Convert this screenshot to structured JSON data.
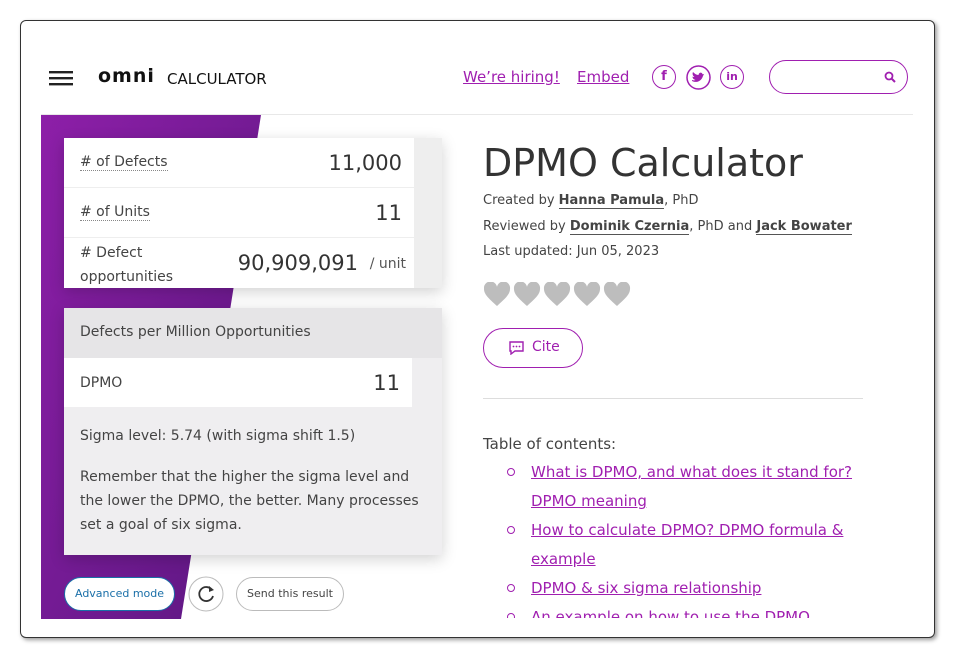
{
  "header": {
    "logo_bold": "omni",
    "logo_light": "CALCULATOR",
    "links": [
      "We’re hiring!",
      "Embed"
    ],
    "social": [
      "f",
      "in"
    ]
  },
  "calculator": {
    "inputs": [
      {
        "label": "# of Defects",
        "value": "11,000"
      },
      {
        "label": "# of Units",
        "value": "11"
      },
      {
        "label": "# Defect opportunities",
        "value": "90,909,091",
        "unit": "/ unit"
      }
    ],
    "result_title": "Defects per Million Opportunities",
    "result": {
      "label": "DPMO",
      "value": "11"
    },
    "sigma": "Sigma level: 5.74 (with sigma shift 1.5)",
    "note": "Remember that the higher the sigma level and the lower the DPMO, the better. Many processes set a goal of six sigma.",
    "buttons": [
      "Advanced mode",
      "Send this result"
    ]
  },
  "article": {
    "title": "DPMO Calculator",
    "created": {
      "prefix": "Created by ",
      "author": "Hanna Pamula",
      "suffix": ", PhD"
    },
    "reviewed": {
      "prefix": "Reviewed by ",
      "reviewer1": "Dominik Czernia",
      "mid": ", PhD and ",
      "reviewer2": "Jack Bowater"
    },
    "updated": "Last updated: Jun 05, 2023",
    "cite": "Cite",
    "toc_label": "Table of contents:",
    "toc": [
      "What is DPMO, and what does it stand for? DPMO meaning",
      "How to calculate DPMO? DPMO formula & example",
      "DPMO & six sigma relationship",
      "An example on how to use the DPMO"
    ]
  }
}
